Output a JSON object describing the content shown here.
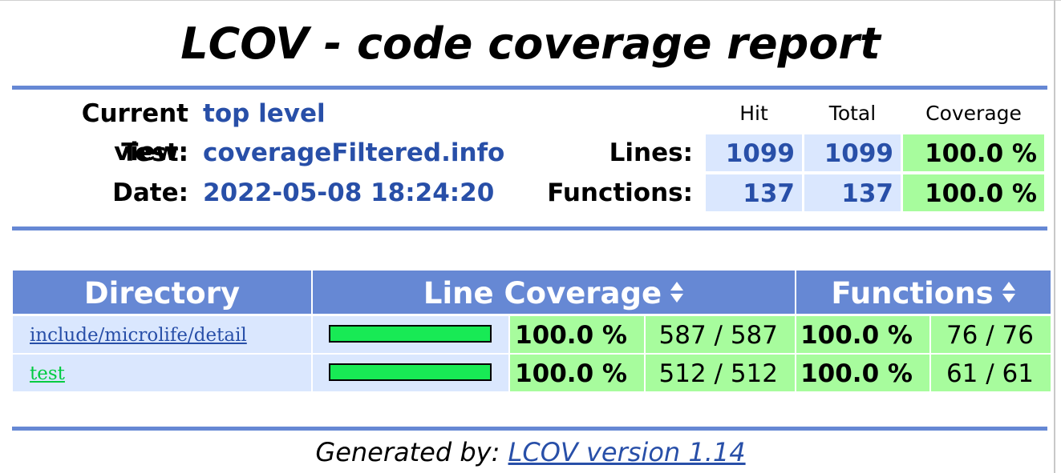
{
  "title": "LCOV - code coverage report",
  "header": {
    "current_view_label": "Current view:",
    "current_view_value": "top level",
    "test_label": "Test:",
    "test_value": "coverageFiltered.info",
    "date_label": "Date:",
    "date_value": "2022-05-08 18:24:20"
  },
  "summary": {
    "columns": {
      "hit": "Hit",
      "total": "Total",
      "coverage": "Coverage"
    },
    "lines": {
      "label": "Lines:",
      "hit": "1099",
      "total": "1099",
      "coverage": "100.0 %"
    },
    "functions": {
      "label": "Functions:",
      "hit": "137",
      "total": "137",
      "coverage": "100.0 %"
    }
  },
  "table": {
    "headers": {
      "directory": "Directory",
      "line_coverage": "Line Coverage",
      "functions": "Functions"
    },
    "rows": [
      {
        "directory": "include/microlife/detail",
        "line_coverage_fraction": 1.0,
        "line_pct": "100.0 %",
        "lines": "587 / 587",
        "func_pct": "100.0 %",
        "funcs": "76 / 76"
      },
      {
        "directory": "test",
        "line_coverage_fraction": 1.0,
        "line_pct": "100.0 %",
        "lines": "512 / 512",
        "func_pct": "100.0 %",
        "funcs": "61 / 61"
      }
    ]
  },
  "footer": {
    "prefix": "Generated by:",
    "link_text": "LCOV version 1.14"
  },
  "colors": {
    "accent_blue": "#6688d4",
    "light_blue": "#dae7fe",
    "coverage_green": "#a7fc9d",
    "bar_green": "#18ea55",
    "link_blue": "#284fa8",
    "visited_green": "#00cb40"
  }
}
